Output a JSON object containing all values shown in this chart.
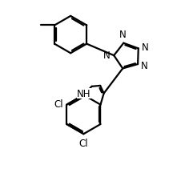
{
  "bg_color": "#ffffff",
  "line_color": "#000000",
  "line_width": 1.6,
  "font_size": 8.5,
  "figsize": [
    2.32,
    2.32
  ],
  "dpi": 100,
  "xlim": [
    0,
    10
  ],
  "ylim": [
    0,
    10
  ]
}
